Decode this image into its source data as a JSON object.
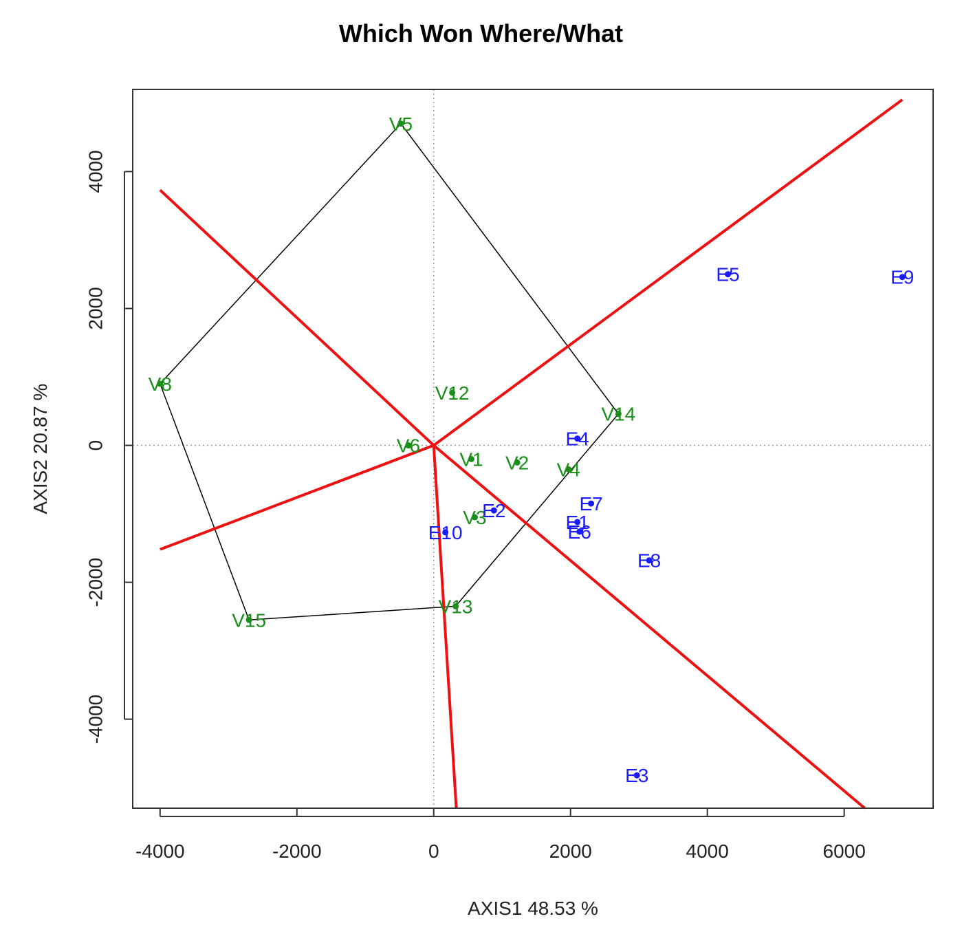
{
  "chart_data": {
    "type": "scatter",
    "title": "Which Won Where/What",
    "xlabel": "AXIS1 48.53 %",
    "ylabel": "AXIS2 20.87 %",
    "xlim": [
      -4400,
      7300
    ],
    "ylim": [
      -5300,
      5200
    ],
    "x_ticks": [
      -4000,
      -2000,
      0,
      2000,
      4000,
      6000
    ],
    "y_ticks": [
      -4000,
      -2000,
      0,
      2000,
      4000
    ],
    "x_tick_labels": [
      "-4000",
      "-2000",
      "0",
      "2000",
      "4000",
      "6000"
    ],
    "y_tick_labels": [
      "-4000",
      "-2000",
      "0",
      "2000",
      "4000"
    ],
    "reference_lines": {
      "x": 0,
      "y": 0,
      "style": "dotted"
    },
    "colors": {
      "genotype": "#1a8f1a",
      "environment": "#1a1aff",
      "sector": "#ee1111",
      "hull": "#000000"
    },
    "series": [
      {
        "name": "genotypes",
        "points": [
          {
            "label": "V5",
            "x": -480,
            "y": 4700
          },
          {
            "label": "V8",
            "x": -4000,
            "y": 900
          },
          {
            "label": "V12",
            "x": 270,
            "y": 770
          },
          {
            "label": "V14",
            "x": 2700,
            "y": 460
          },
          {
            "label": "V6",
            "x": -370,
            "y": 0
          },
          {
            "label": "V1",
            "x": 550,
            "y": -200
          },
          {
            "label": "V2",
            "x": 1220,
            "y": -250
          },
          {
            "label": "V4",
            "x": 1970,
            "y": -350
          },
          {
            "label": "V3",
            "x": 600,
            "y": -1050
          },
          {
            "label": "V13",
            "x": 320,
            "y": -2350
          },
          {
            "label": "V15",
            "x": -2700,
            "y": -2550
          }
        ]
      },
      {
        "name": "environments",
        "points": [
          {
            "label": "E5",
            "x": 4300,
            "y": 2500
          },
          {
            "label": "E9",
            "x": 6850,
            "y": 2460
          },
          {
            "label": "E4",
            "x": 2100,
            "y": 100
          },
          {
            "label": "E7",
            "x": 2300,
            "y": -850
          },
          {
            "label": "E2",
            "x": 880,
            "y": -950
          },
          {
            "label": "E1",
            "x": 2100,
            "y": -1120
          },
          {
            "label": "E6",
            "x": 2130,
            "y": -1260
          },
          {
            "label": "E10",
            "x": 170,
            "y": -1270
          },
          {
            "label": "E8",
            "x": 3150,
            "y": -1680
          },
          {
            "label": "E3",
            "x": 2970,
            "y": -4820
          }
        ]
      }
    ],
    "polygon": [
      "V5",
      "V14",
      "V13",
      "V15",
      "V8"
    ],
    "sector_lines": [
      {
        "from": [
          0,
          0
        ],
        "to": [
          6850,
          5050
        ]
      },
      {
        "from": [
          0,
          0
        ],
        "to": [
          -4000,
          3730
        ]
      },
      {
        "from": [
          0,
          0
        ],
        "to": [
          -4000,
          -1520
        ]
      },
      {
        "from": [
          0,
          0
        ],
        "to": [
          330,
          -5300
        ]
      },
      {
        "from": [
          0,
          0
        ],
        "to": [
          6300,
          -5300
        ]
      }
    ]
  }
}
